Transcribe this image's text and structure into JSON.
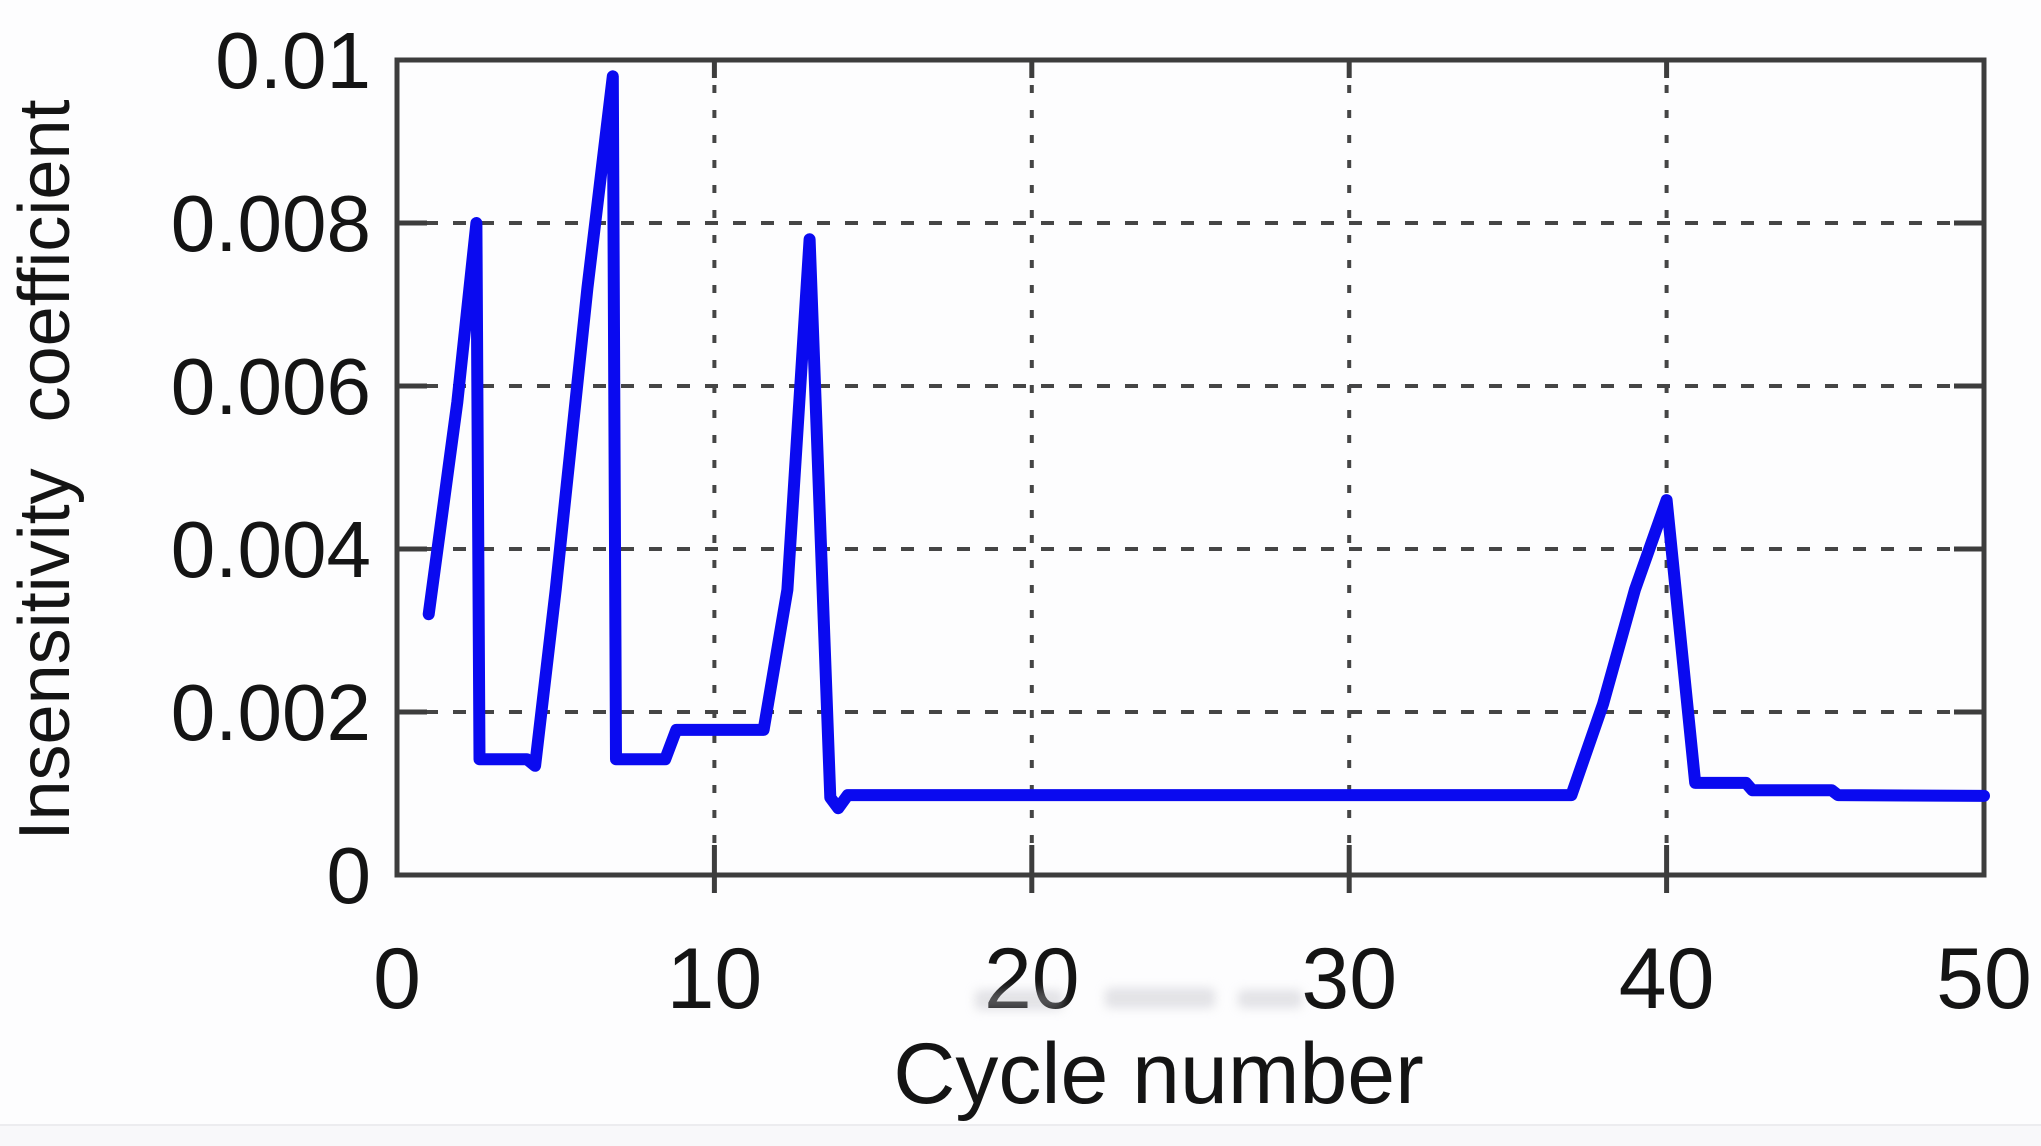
{
  "figure": {
    "background": "#fdfdfe",
    "line_color": "#0a0af0",
    "grid_color": "#454545",
    "border_color": "#3d3d3d",
    "text_color": "#141414"
  },
  "chart_data": {
    "type": "line",
    "title": "",
    "xlabel": "Cycle number",
    "ylabel": "Insensitivity coefficient",
    "xlim": [
      0,
      50
    ],
    "ylim": [
      0,
      0.01
    ],
    "x_ticks": [
      0,
      10,
      20,
      30,
      40,
      50
    ],
    "x_tick_labels": [
      "0",
      "10",
      "20",
      "30",
      "40",
      "50"
    ],
    "y_ticks": [
      0,
      0.002,
      0.004,
      0.006,
      0.008,
      0.01
    ],
    "y_tick_labels": [
      "0",
      "0.002",
      "0.004",
      "0.006",
      "0.008",
      "0.01"
    ],
    "grid": true,
    "legend": "none",
    "series": [
      {
        "name": "insensitivity coefficient",
        "color": "#0a0af0",
        "line_width": 12,
        "points": [
          [
            1.0,
            0.0032
          ],
          [
            1.9,
            0.0058
          ],
          [
            2.5,
            0.008
          ],
          [
            2.6,
            0.00142
          ],
          [
            4.1,
            0.00142
          ],
          [
            4.35,
            0.00134
          ],
          [
            5.0,
            0.0035
          ],
          [
            6.0,
            0.0072
          ],
          [
            6.8,
            0.0098
          ],
          [
            6.9,
            0.00142
          ],
          [
            8.45,
            0.00142
          ],
          [
            8.8,
            0.00178
          ],
          [
            11.55,
            0.00178
          ],
          [
            12.3,
            0.0035
          ],
          [
            13.0,
            0.0078
          ],
          [
            13.65,
            0.00095
          ],
          [
            13.9,
            0.00082
          ],
          [
            14.2,
            0.00098
          ],
          [
            37.0,
            0.00098
          ],
          [
            38.0,
            0.0021
          ],
          [
            39.0,
            0.0035
          ],
          [
            40.0,
            0.0046
          ],
          [
            40.9,
            0.00113
          ],
          [
            42.5,
            0.00113
          ],
          [
            42.7,
            0.00104
          ],
          [
            45.2,
            0.00104
          ],
          [
            45.4,
            0.00098
          ],
          [
            50.0,
            0.00097
          ]
        ]
      }
    ]
  }
}
